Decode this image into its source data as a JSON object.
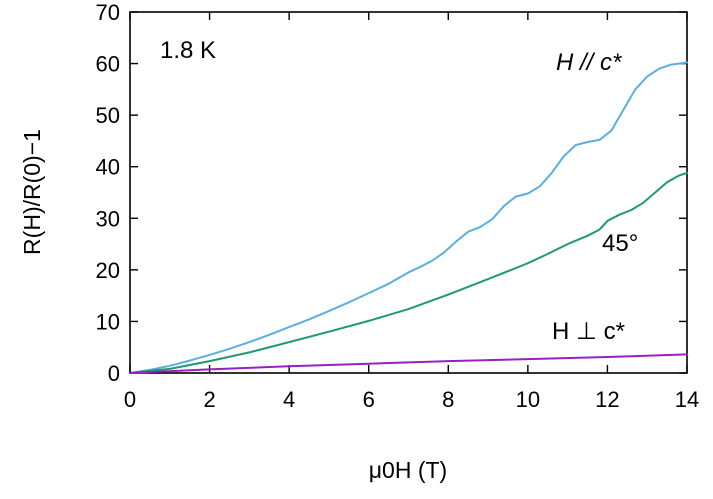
{
  "chart_data": {
    "type": "line",
    "xlabel": "μ0H (T)",
    "ylabel": "R(H)/R(0)−1",
    "xlim": [
      0,
      14
    ],
    "ylim": [
      0,
      70
    ],
    "xticks": [
      0,
      2,
      4,
      6,
      8,
      10,
      12,
      14
    ],
    "yticks": [
      0,
      10,
      20,
      30,
      40,
      50,
      60,
      70
    ],
    "grid": false,
    "annotations": {
      "temperature": "1.8 K",
      "parallel": "H // c*",
      "angle": "45°",
      "perpendicular": "H ⊥ c*"
    },
    "series": [
      {
        "label_ref": "parallel",
        "color": "#5aaee0",
        "x": [
          0,
          0.5,
          1,
          1.5,
          2,
          2.5,
          3,
          3.5,
          4,
          4.5,
          5,
          5.5,
          6,
          6.5,
          7,
          7.3,
          7.6,
          7.9,
          8.2,
          8.5,
          8.8,
          9.1,
          9.4,
          9.7,
          10.0,
          10.3,
          10.6,
          10.9,
          11.2,
          11.5,
          11.8,
          12.1,
          12.4,
          12.7,
          13.0,
          13.3,
          13.6,
          14.0
        ],
        "y": [
          0,
          0.6,
          1.4,
          2.4,
          3.5,
          4.7,
          6.0,
          7.4,
          8.9,
          10.4,
          12.0,
          13.7,
          15.5,
          17.3,
          19.5,
          20.6,
          21.8,
          23.4,
          25.5,
          27.4,
          28.3,
          29.8,
          32.4,
          34.2,
          34.8,
          36.2,
          38.8,
          42.0,
          44.2,
          44.8,
          45.2,
          47.0,
          51.0,
          55.0,
          57.5,
          59.0,
          59.8,
          60.2
        ]
      },
      {
        "label_ref": "angle",
        "color": "#1f9a6e",
        "x": [
          0,
          1,
          2,
          3,
          4,
          5,
          6,
          7,
          8,
          9,
          10,
          10.5,
          11,
          11.5,
          11.8,
          12.0,
          12.3,
          12.6,
          12.9,
          13.2,
          13.5,
          13.8,
          14.0
        ],
        "y": [
          0,
          0.8,
          2.3,
          4.0,
          6.0,
          8.0,
          10.1,
          12.4,
          15.2,
          18.2,
          21.3,
          23.1,
          25.0,
          26.6,
          27.8,
          29.5,
          30.7,
          31.6,
          33.0,
          35.0,
          37.0,
          38.3,
          38.8
        ]
      },
      {
        "label_ref": "perpendicular",
        "color": "#9a1fc0",
        "x": [
          0,
          2,
          4,
          6,
          8,
          10,
          12,
          14
        ],
        "y": [
          0,
          0.7,
          1.3,
          1.8,
          2.3,
          2.7,
          3.1,
          3.6
        ]
      }
    ]
  }
}
